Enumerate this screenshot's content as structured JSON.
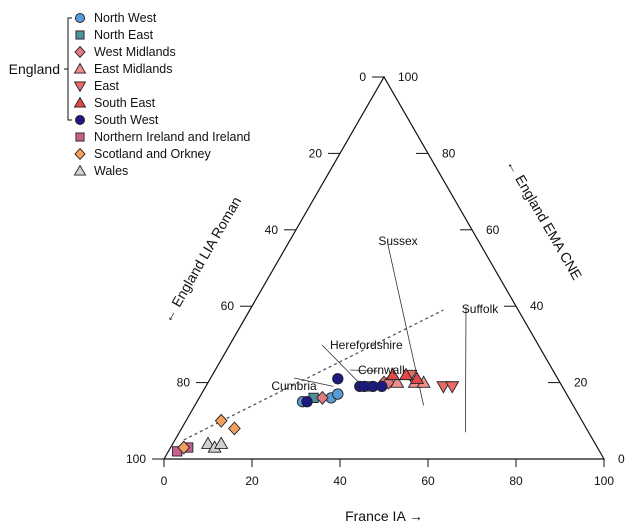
{
  "chart_data": {
    "type": "scatter",
    "subtype": "ternary",
    "axes": {
      "bottom": {
        "label": "France IA",
        "arrow": "→",
        "ticks": [
          0,
          20,
          40,
          60,
          80,
          100
        ],
        "range": [
          0,
          100
        ]
      },
      "left": {
        "label": "England LIA Roman",
        "arrow": "←",
        "ticks": [
          100,
          80,
          60,
          40,
          20,
          0
        ],
        "range": [
          0,
          100
        ]
      },
      "right": {
        "label": "England EMA CNE",
        "arrow": "←",
        "ticks": [
          0,
          20,
          40,
          60,
          80,
          100
        ],
        "range": [
          0,
          100
        ]
      }
    },
    "legend": {
      "placement": "top-left",
      "group_label": "England",
      "entries": [
        {
          "name": "North West",
          "shape": "circle",
          "color": "#5b9bd5",
          "group": "England"
        },
        {
          "name": "North East",
          "shape": "square",
          "color": "#4f8f9f",
          "group": "England"
        },
        {
          "name": "West Midlands",
          "shape": "diamond",
          "color": "#e07a80",
          "group": "England"
        },
        {
          "name": "East Midlands",
          "shape": "triangle-up",
          "color": "#ef8d8d",
          "group": "England"
        },
        {
          "name": "East",
          "shape": "triangle-down",
          "color": "#ee6a6a",
          "group": "England"
        },
        {
          "name": "South East",
          "shape": "triangle-up",
          "color": "#e34848",
          "group": "England"
        },
        {
          "name": "South West",
          "shape": "circle",
          "color": "#1a1a80",
          "group": "England"
        },
        {
          "name": "Northern Ireland and Ireland",
          "shape": "square",
          "color": "#c8608f"
        },
        {
          "name": "Scotland and Orkney",
          "shape": "diamond",
          "color": "#f0a060"
        },
        {
          "name": "Wales",
          "shape": "triangle-up",
          "color": "#d0d0d0"
        }
      ]
    },
    "trend_line": {
      "from": {
        "france_ia": 2,
        "england_lia_roman": 93
      },
      "to": {
        "france_ia": 44,
        "england_lia_roman": 17
      }
    },
    "annotations": [
      {
        "text": "Sussex",
        "at": {
          "france_ia": 52,
          "england_lia_roman": 34
        }
      },
      {
        "text": "Suffolk",
        "at": {
          "france_ia": 65,
          "england_lia_roman": 28
        }
      },
      {
        "text": "Herefordshire",
        "at": {
          "france_ia": 37,
          "england_lia_roman": 45
        }
      },
      {
        "text": "Cornwall",
        "at": {
          "france_ia": 37,
          "england_lia_roman": 40
        }
      },
      {
        "text": "Cumbria",
        "at": {
          "france_ia": 29,
          "england_lia_roman": 52
        }
      }
    ],
    "points": [
      {
        "series": "Northern Ireland and Ireland",
        "france_ia": 2,
        "england_lia_roman": 96
      },
      {
        "series": "Northern Ireland and Ireland",
        "france_ia": 4,
        "england_lia_roman": 93
      },
      {
        "series": "Scotland and Orkney",
        "france_ia": 3,
        "england_lia_roman": 94
      },
      {
        "series": "Scotland and Orkney",
        "france_ia": 8,
        "england_lia_roman": 82
      },
      {
        "series": "Scotland and Orkney",
        "france_ia": 12,
        "england_lia_roman": 80
      },
      {
        "series": "Wales",
        "france_ia": 8,
        "england_lia_roman": 88
      },
      {
        "series": "Wales",
        "france_ia": 10,
        "england_lia_roman": 87
      },
      {
        "series": "Wales",
        "france_ia": 11,
        "england_lia_roman": 85
      },
      {
        "series": "North West",
        "france_ia": 24,
        "england_lia_roman": 61
      },
      {
        "series": "North West",
        "france_ia": 30,
        "england_lia_roman": 54
      },
      {
        "series": "North West",
        "france_ia": 31,
        "england_lia_roman": 52
      },
      {
        "series": "North East",
        "france_ia": 26,
        "england_lia_roman": 58
      },
      {
        "series": "North East",
        "france_ia": 37,
        "england_lia_roman": 44
      },
      {
        "series": "West Midlands",
        "france_ia": 28,
        "england_lia_roman": 56
      },
      {
        "series": "West Midlands",
        "france_ia": 40,
        "england_lia_roman": 40
      },
      {
        "series": "West Midlands",
        "france_ia": 41,
        "england_lia_roman": 39
      },
      {
        "series": "East Midlands",
        "france_ia": 43,
        "england_lia_roman": 37
      },
      {
        "series": "East Midlands",
        "france_ia": 47,
        "england_lia_roman": 33
      },
      {
        "series": "East Midlands",
        "france_ia": 49,
        "england_lia_roman": 31
      },
      {
        "series": "East",
        "france_ia": 54,
        "england_lia_roman": 27
      },
      {
        "series": "East",
        "france_ia": 56,
        "england_lia_roman": 25
      },
      {
        "series": "East",
        "france_ia": 45,
        "england_lia_roman": 33
      },
      {
        "series": "South East",
        "france_ia": 41,
        "england_lia_roman": 37
      },
      {
        "series": "South East",
        "france_ia": 44,
        "england_lia_roman": 34
      },
      {
        "series": "South East",
        "france_ia": 47,
        "england_lia_roman": 32
      },
      {
        "series": "South West",
        "france_ia": 25,
        "england_lia_roman": 60
      },
      {
        "series": "South West",
        "france_ia": 29,
        "england_lia_roman": 50
      },
      {
        "series": "South West",
        "france_ia": 35,
        "england_lia_roman": 46
      },
      {
        "series": "South West",
        "france_ia": 36,
        "england_lia_roman": 45
      },
      {
        "series": "South West",
        "france_ia": 38,
        "england_lia_roman": 43
      },
      {
        "series": "South West",
        "france_ia": 40,
        "england_lia_roman": 41
      }
    ]
  }
}
